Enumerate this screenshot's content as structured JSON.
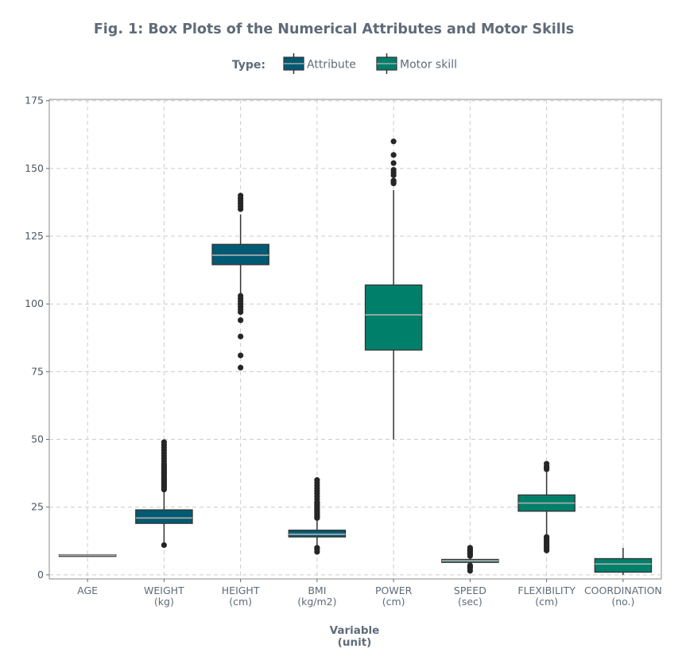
{
  "chart_data": {
    "type": "box",
    "title": "Fig. 1: Box Plots of the Numerical Attributes and Motor Skills",
    "legend": {
      "title": "Type:",
      "placement": "top",
      "entries": [
        {
          "label": "Attribute",
          "color": "#005a73"
        },
        {
          "label": "Motor skill",
          "color": "#00806a"
        }
      ]
    },
    "xlabel": [
      "Variable",
      "(unit)"
    ],
    "ylabel": "",
    "ylim": [
      -1.5,
      175.5
    ],
    "yticks": [
      0,
      25,
      50,
      75,
      100,
      125,
      150,
      175
    ],
    "grid": true,
    "colors": {
      "text": "#5f6b78",
      "axis_text": "#4d5661",
      "grid": "#cccccc",
      "box_edge": "#333333",
      "median": "#a9a9a9",
      "outlier": "#262626",
      "panel_border": "#888888"
    },
    "categories": [
      {
        "name": "AGE",
        "unit": "",
        "type": "Attribute",
        "q1": 7.0,
        "median": 7.2,
        "q3": 7.4,
        "whisker_low": 7.0,
        "whisker_high": 7.4,
        "outliers": []
      },
      {
        "name": "WEIGHT",
        "unit": "(kg)",
        "type": "Attribute",
        "q1": 19,
        "median": 21,
        "q3": 24,
        "whisker_low": 12,
        "whisker_high": 31,
        "outliers": [
          11,
          31.5,
          32,
          32.5,
          33,
          33.5,
          34,
          34.5,
          35,
          35.5,
          36,
          36.5,
          37,
          37.5,
          38,
          38.5,
          39,
          39.5,
          40,
          40.5,
          41,
          42,
          43,
          44,
          45,
          46,
          47,
          48,
          49
        ]
      },
      {
        "name": "HEIGHT",
        "unit": "(cm)",
        "type": "Attribute",
        "q1": 114.5,
        "median": 118,
        "q3": 122,
        "whisker_low": 103.5,
        "whisker_high": 133,
        "outliers": [
          76.5,
          81,
          88,
          94,
          97,
          98,
          99,
          100,
          101,
          102,
          103,
          135,
          136,
          137,
          138,
          139,
          140
        ]
      },
      {
        "name": "BMI",
        "unit": "(kg/m2)",
        "type": "Attribute",
        "q1": 14,
        "median": 15,
        "q3": 16.5,
        "whisker_low": 10.5,
        "whisker_high": 20.5,
        "outliers": [
          8.5,
          9.5,
          10,
          21,
          21.5,
          22,
          22.5,
          23,
          23.5,
          24,
          24.5,
          25,
          25.5,
          26,
          26.5,
          27,
          28,
          29,
          30,
          31,
          32,
          33,
          34,
          35
        ]
      },
      {
        "name": "POWER",
        "unit": "(cm)",
        "type": "Motor skill",
        "q1": 83,
        "median": 96,
        "q3": 107,
        "whisker_low": 50,
        "whisker_high": 142,
        "outliers": [
          144.5,
          145,
          145.5,
          147.5,
          148.5,
          149.5,
          152,
          155,
          160
        ]
      },
      {
        "name": "SPEED",
        "unit": "(sec)",
        "type": "Motor skill",
        "q1": 4.6,
        "median": 5.2,
        "q3": 5.7,
        "whisker_low": 3.8,
        "whisker_high": 6.9,
        "outliers": [
          1.5,
          2.5,
          3,
          3.5,
          7,
          7.5,
          8,
          8.5,
          9,
          9.5,
          10
        ]
      },
      {
        "name": "FLEXIBILITY",
        "unit": "(cm)",
        "type": "Motor skill",
        "q1": 23.5,
        "median": 26.5,
        "q3": 29.5,
        "whisker_low": 15,
        "whisker_high": 38,
        "outliers": [
          9,
          9.5,
          10,
          10.5,
          11,
          11.5,
          12,
          12.5,
          13,
          13.5,
          14,
          39,
          39.5,
          40,
          41
        ]
      },
      {
        "name": "COORDINATION",
        "unit": "(no.)",
        "type": "Motor skill",
        "q1": 1,
        "median": 4,
        "q3": 6,
        "whisker_low": 0,
        "whisker_high": 10,
        "outliers": []
      }
    ]
  }
}
